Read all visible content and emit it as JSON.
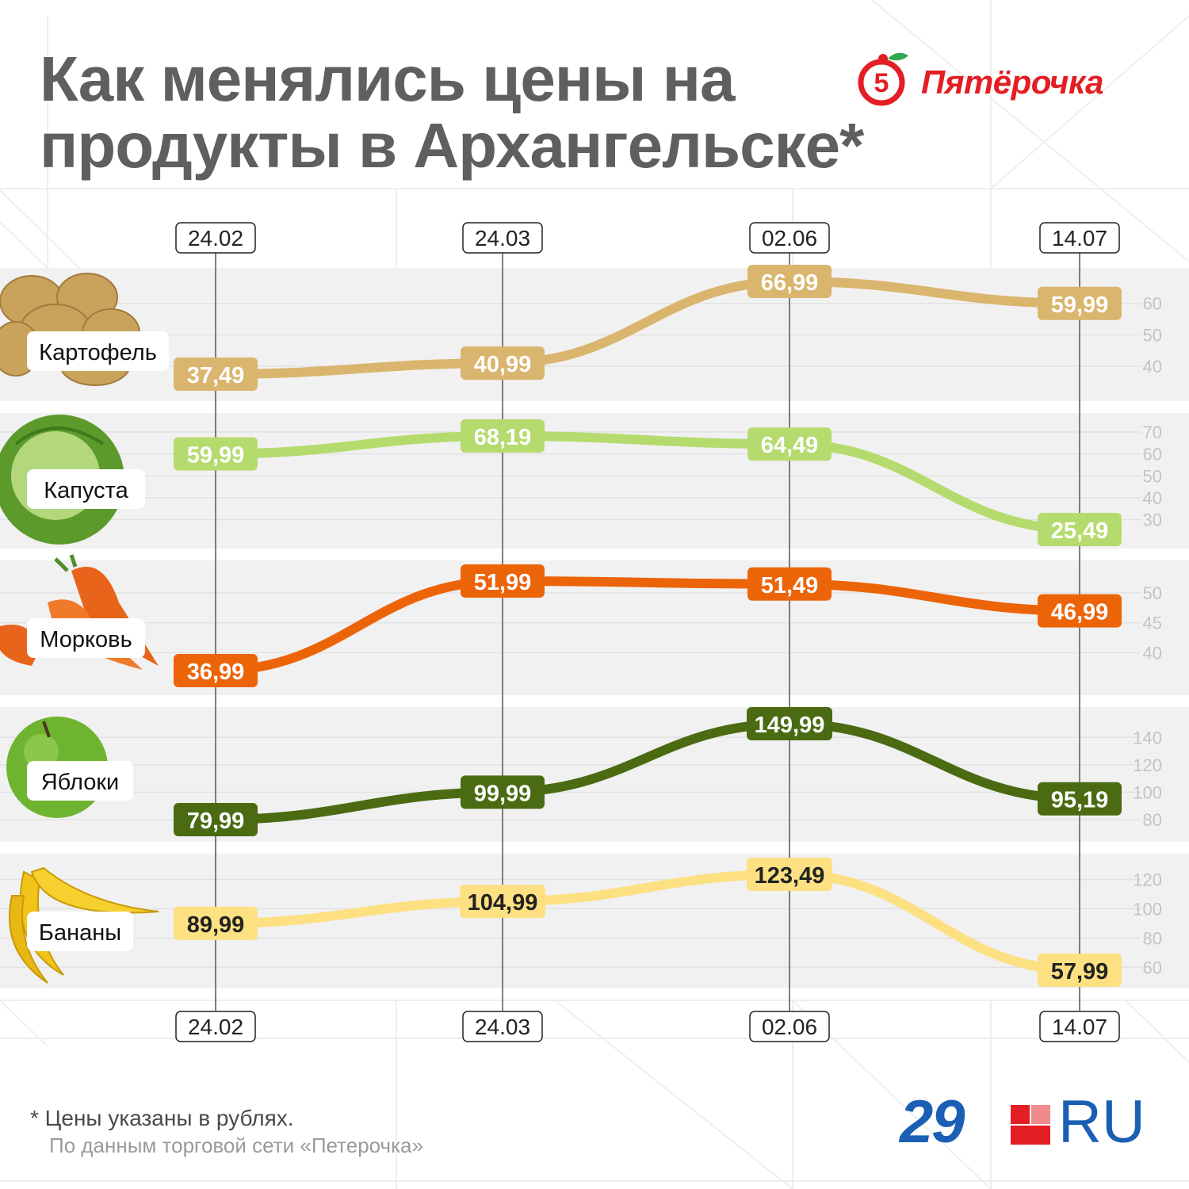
{
  "title": "Как менялись цены на продукты в Архангельске*",
  "logo": {
    "text": "Пятёрочка",
    "mark": "5",
    "color": "#e31e24"
  },
  "footnote": "* Цены указаны в рублях.",
  "source": "По данным торговой сети «Петерочка»",
  "brand": {
    "number": "29",
    "suffix": "RU",
    "color": "#1a5fb4",
    "accent": "#e31e24"
  },
  "chart_data": {
    "type": "line",
    "categories": [
      "24.02",
      "24.03",
      "02.06",
      "14.07"
    ],
    "series": [
      {
        "name": "Картофель",
        "values": [
          37.49,
          40.99,
          66.99,
          59.99
        ],
        "labels": [
          "37,49",
          "40,99",
          "66,99",
          "59,99"
        ],
        "color": "#dab56e",
        "label_text_color": "#ffffff",
        "ylim": [
          35,
          70
        ],
        "ticks": [
          40,
          50,
          60
        ],
        "icon": "potato-icon"
      },
      {
        "name": "Капуста",
        "values": [
          59.99,
          68.19,
          64.49,
          25.49
        ],
        "labels": [
          "59,99",
          "68,19",
          "64,49",
          "25,49"
        ],
        "color": "#b5db6f",
        "label_text_color": "#ffffff",
        "ylim": [
          22,
          75
        ],
        "ticks": [
          30,
          40,
          50,
          60,
          70
        ],
        "icon": "cabbage-icon"
      },
      {
        "name": "Морковь",
        "values": [
          36.99,
          51.99,
          51.49,
          46.99
        ],
        "labels": [
          "36,99",
          "51,99",
          "51,49",
          "46,99"
        ],
        "color": "#ec6408",
        "label_text_color": "#ffffff",
        "ylim": [
          36,
          54
        ],
        "ticks": [
          40,
          45,
          50
        ],
        "icon": "carrot-icon"
      },
      {
        "name": "Яблоки",
        "values": [
          79.99,
          99.99,
          149.99,
          95.19
        ],
        "labels": [
          "79,99",
          "99,99",
          "149,99",
          "95,19"
        ],
        "color": "#4a6b12",
        "label_text_color": "#ffffff",
        "ylim": [
          75,
          160
        ],
        "ticks": [
          80,
          100,
          120,
          140
        ],
        "icon": "apple-icon"
      },
      {
        "name": "Бананы",
        "values": [
          89.99,
          104.99,
          123.49,
          57.99
        ],
        "labels": [
          "89,99",
          "104,99",
          "123,49",
          "57,99"
        ],
        "color": "#fde082",
        "label_text_color": "#222222",
        "ylim": [
          50,
          130
        ],
        "ticks": [
          60,
          80,
          100,
          120
        ],
        "icon": "banana-icon"
      }
    ],
    "grid": true,
    "legend": "left"
  }
}
